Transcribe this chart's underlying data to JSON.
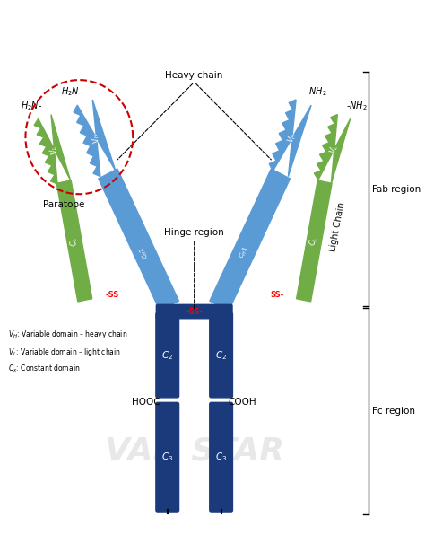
{
  "bg_color": "#f0f0f0",
  "fig_bg": "#ffffff",
  "heavy_chain_color": "#5b9bd5",
  "light_chain_color": "#70ad47",
  "fc_rod_color": "#1a3a7c",
  "ss_color": "#ff0000",
  "fab_label": "Fab region",
  "fc_label": "Fc region",
  "paratope_label": "Paratope",
  "heavy_chain_label": "Heavy chain",
  "hinge_label": "Hinge region",
  "light_chain_label": "Light Chain",
  "hooc_label": "HOOC",
  "cooh_label": "COOH",
  "h2n_label": "H₂N-",
  "nh2_label": "-NH₂",
  "legend1": "Vᴴ: Variable domain – heavy chain",
  "legend2": "Vᴸ: Variable domain – light chain",
  "legend3": "Cₓ: Constant domain",
  "watermark": "VAN STAR"
}
